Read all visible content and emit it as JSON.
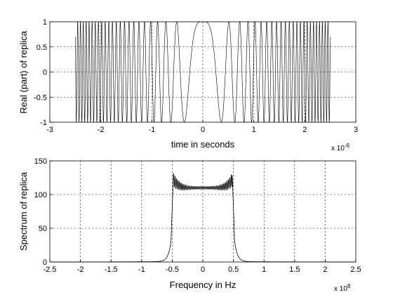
{
  "chart_data": [
    {
      "type": "line",
      "title": "",
      "xlabel": "time in seconds",
      "ylabel": "Real (part) of replica",
      "x_exponent_label": "x 10",
      "x_exponent_power": "-6",
      "xlim": [
        -3,
        3
      ],
      "ylim": [
        -1,
        1
      ],
      "xticks": [
        "-3",
        "-2",
        "-1",
        "0",
        "1",
        "2",
        "3"
      ],
      "yticks": [
        "-1",
        "-0.5",
        "0",
        "0.5",
        "1"
      ],
      "xtick_values": [
        -3,
        -2,
        -1,
        0,
        1,
        2,
        3
      ],
      "ytick_values": [
        -1,
        -0.5,
        0,
        0.5,
        1
      ],
      "grid": true,
      "signal": {
        "description_units": "x in units of 1e-6 s",
        "t_start": -2.5,
        "t_end": 2.5,
        "form": "cos(k * t^2)",
        "k": 24
      }
    },
    {
      "type": "line",
      "title": "",
      "xlabel": "Frequency in Hz",
      "ylabel": "Spectrum of replica",
      "x_exponent_label": "x 10",
      "x_exponent_power": "8",
      "xlim": [
        -2.5,
        2.5
      ],
      "ylim": [
        0,
        150
      ],
      "xticks": [
        "-2.5",
        "-2",
        "-1.5",
        "-1",
        "-0.5",
        "0",
        "0.5",
        "1",
        "1.5",
        "2",
        "2.5"
      ],
      "yticks": [
        "0",
        "50",
        "100",
        "150"
      ],
      "xtick_values": [
        -2.5,
        -2,
        -1.5,
        -1,
        -0.5,
        0,
        0.5,
        1,
        1.5,
        2,
        2.5
      ],
      "ytick_values": [
        0,
        50,
        100,
        150
      ],
      "grid": true,
      "spectrum": {
        "passband_edge": 0.5,
        "plateau_level": 110,
        "edge_peak": 132,
        "ripple_trough": 103
      }
    }
  ]
}
